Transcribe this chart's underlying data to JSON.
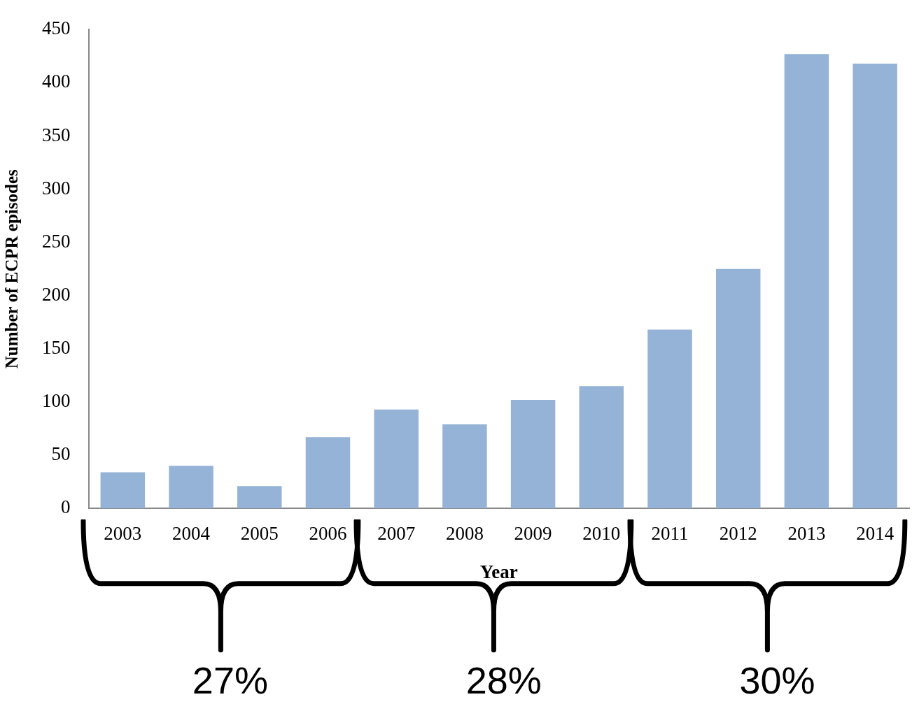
{
  "chart_data": {
    "type": "bar",
    "xlabel": "Year",
    "ylabel": "Number of ECPR episodes",
    "categories": [
      "2003",
      "2004",
      "2005",
      "2006",
      "2007",
      "2008",
      "2009",
      "2010",
      "2011",
      "2012",
      "2013",
      "2014"
    ],
    "values": [
      34,
      40,
      21,
      67,
      93,
      79,
      102,
      115,
      168,
      225,
      427,
      418
    ],
    "color": "#95b3d7",
    "ylim": [
      0,
      450
    ],
    "yticks": [
      0,
      50,
      100,
      150,
      200,
      250,
      300,
      350,
      400,
      450
    ],
    "grid": false,
    "legend": false,
    "annotations": [
      "27%",
      "28%",
      "30%"
    ]
  }
}
